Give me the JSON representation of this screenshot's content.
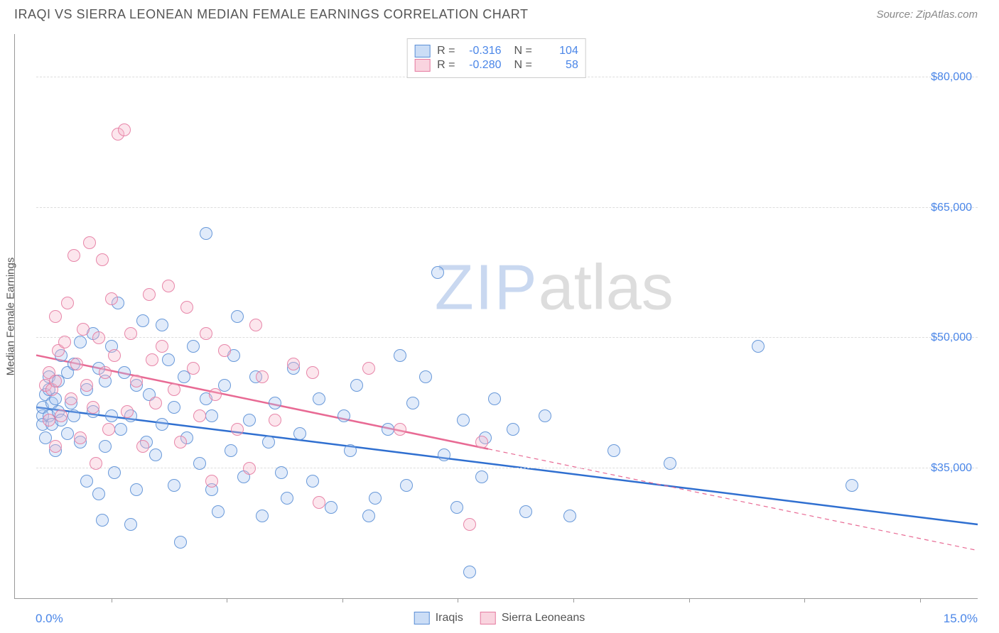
{
  "header": {
    "title": "IRAQI VS SIERRA LEONEAN MEDIAN FEMALE EARNINGS CORRELATION CHART",
    "source": "Source: ZipAtlas.com"
  },
  "watermark": {
    "part1": "ZIP",
    "part2": "atlas"
  },
  "chart": {
    "type": "scatter",
    "background_color": "#ffffff",
    "grid_color": "#dddddd",
    "axis_color": "#999999",
    "y_axis_label": "Median Female Earnings",
    "xlim": [
      0,
      15
    ],
    "ylim": [
      20000,
      85000
    ],
    "x_endpoints": [
      "0.0%",
      "15.0%"
    ],
    "y_ticks": [
      {
        "value": 35000,
        "label": "$35,000"
      },
      {
        "value": 50000,
        "label": "$50,000"
      },
      {
        "value": 65000,
        "label": "$65,000"
      },
      {
        "value": 80000,
        "label": "$80,000"
      }
    ],
    "x_tick_positions_pct": [
      10,
      22,
      34,
      46,
      58,
      70,
      82,
      94
    ],
    "marker_radius": 9,
    "marker_fill_opacity": 0.35,
    "marker_stroke_opacity": 0.9,
    "marker_stroke_width": 1,
    "series": [
      {
        "name": "Iraqis",
        "color_fill": "#a8c6f0",
        "color_stroke": "#5b8fd6",
        "R": "-0.316",
        "N": "104",
        "trend": {
          "y_at_xmin": 42000,
          "y_at_xmax": 28500,
          "color": "#2f6fd0",
          "width": 2.5
        },
        "points": [
          [
            0.1,
            41000
          ],
          [
            0.1,
            42000
          ],
          [
            0.1,
            40000
          ],
          [
            0.15,
            43500
          ],
          [
            0.15,
            38500
          ],
          [
            0.2,
            44000
          ],
          [
            0.2,
            41000
          ],
          [
            0.2,
            45500
          ],
          [
            0.25,
            42500
          ],
          [
            0.25,
            40000
          ],
          [
            0.3,
            43000
          ],
          [
            0.3,
            37000
          ],
          [
            0.35,
            45000
          ],
          [
            0.35,
            41500
          ],
          [
            0.4,
            48000
          ],
          [
            0.4,
            40500
          ],
          [
            0.5,
            46000
          ],
          [
            0.5,
            39000
          ],
          [
            0.55,
            42500
          ],
          [
            0.6,
            47000
          ],
          [
            0.6,
            41000
          ],
          [
            0.7,
            49500
          ],
          [
            0.7,
            38000
          ],
          [
            0.8,
            44000
          ],
          [
            0.8,
            33500
          ],
          [
            0.9,
            50500
          ],
          [
            0.9,
            41500
          ],
          [
            1.0,
            32000
          ],
          [
            1.0,
            46500
          ],
          [
            1.05,
            29000
          ],
          [
            1.1,
            45000
          ],
          [
            1.1,
            37500
          ],
          [
            1.2,
            49000
          ],
          [
            1.2,
            41000
          ],
          [
            1.25,
            34500
          ],
          [
            1.3,
            54000
          ],
          [
            1.35,
            39500
          ],
          [
            1.4,
            46000
          ],
          [
            1.5,
            41000
          ],
          [
            1.5,
            28500
          ],
          [
            1.6,
            32500
          ],
          [
            1.6,
            44500
          ],
          [
            1.7,
            52000
          ],
          [
            1.75,
            38000
          ],
          [
            1.8,
            43500
          ],
          [
            1.9,
            36500
          ],
          [
            2.0,
            51500
          ],
          [
            2.0,
            40000
          ],
          [
            2.1,
            47500
          ],
          [
            2.2,
            33000
          ],
          [
            2.2,
            42000
          ],
          [
            2.3,
            26500
          ],
          [
            2.35,
            45500
          ],
          [
            2.4,
            38500
          ],
          [
            2.5,
            49000
          ],
          [
            2.6,
            35500
          ],
          [
            2.7,
            62000
          ],
          [
            2.7,
            43000
          ],
          [
            2.8,
            32500
          ],
          [
            2.8,
            41000
          ],
          [
            2.9,
            30000
          ],
          [
            3.0,
            44500
          ],
          [
            3.1,
            37000
          ],
          [
            3.15,
            48000
          ],
          [
            3.2,
            52500
          ],
          [
            3.3,
            34000
          ],
          [
            3.4,
            40500
          ],
          [
            3.5,
            45500
          ],
          [
            3.6,
            29500
          ],
          [
            3.7,
            38000
          ],
          [
            3.8,
            42500
          ],
          [
            3.9,
            34500
          ],
          [
            4.0,
            31500
          ],
          [
            4.1,
            46500
          ],
          [
            4.2,
            39000
          ],
          [
            4.4,
            33500
          ],
          [
            4.5,
            43000
          ],
          [
            4.7,
            30500
          ],
          [
            4.9,
            41000
          ],
          [
            5.0,
            37000
          ],
          [
            5.1,
            44500
          ],
          [
            5.3,
            29500
          ],
          [
            5.4,
            31500
          ],
          [
            5.6,
            39500
          ],
          [
            5.8,
            48000
          ],
          [
            5.9,
            33000
          ],
          [
            6.0,
            42500
          ],
          [
            6.2,
            45500
          ],
          [
            6.4,
            57500
          ],
          [
            6.5,
            36500
          ],
          [
            6.7,
            30500
          ],
          [
            6.8,
            40500
          ],
          [
            6.9,
            23000
          ],
          [
            7.1,
            34000
          ],
          [
            7.15,
            38500
          ],
          [
            7.3,
            43000
          ],
          [
            7.6,
            39500
          ],
          [
            7.8,
            30000
          ],
          [
            8.1,
            41000
          ],
          [
            8.5,
            29500
          ],
          [
            9.2,
            37000
          ],
          [
            10.1,
            35500
          ],
          [
            11.5,
            49000
          ],
          [
            13.0,
            33000
          ]
        ]
      },
      {
        "name": "Sierra Leoneans",
        "color_fill": "#f5b8ca",
        "color_stroke": "#e57ba1",
        "R": "-0.280",
        "N": "58",
        "trend": {
          "y_at_xmin": 48000,
          "y_at_xmax": 25500,
          "solid_until_x": 7.2,
          "color": "#e86a94",
          "width": 2.5
        },
        "points": [
          [
            0.15,
            44500
          ],
          [
            0.2,
            46000
          ],
          [
            0.2,
            40500
          ],
          [
            0.25,
            44000
          ],
          [
            0.3,
            52500
          ],
          [
            0.3,
            37500
          ],
          [
            0.3,
            45000
          ],
          [
            0.35,
            48500
          ],
          [
            0.4,
            41000
          ],
          [
            0.45,
            49500
          ],
          [
            0.5,
            54000
          ],
          [
            0.55,
            43000
          ],
          [
            0.6,
            59500
          ],
          [
            0.65,
            47000
          ],
          [
            0.7,
            38500
          ],
          [
            0.75,
            51000
          ],
          [
            0.8,
            44500
          ],
          [
            0.85,
            61000
          ],
          [
            0.9,
            42000
          ],
          [
            0.95,
            35500
          ],
          [
            1.0,
            50000
          ],
          [
            1.05,
            59000
          ],
          [
            1.1,
            46000
          ],
          [
            1.15,
            39500
          ],
          [
            1.2,
            54500
          ],
          [
            1.25,
            48000
          ],
          [
            1.3,
            73500
          ],
          [
            1.4,
            74000
          ],
          [
            1.45,
            41500
          ],
          [
            1.5,
            50500
          ],
          [
            1.6,
            45000
          ],
          [
            1.7,
            37500
          ],
          [
            1.8,
            55000
          ],
          [
            1.85,
            47500
          ],
          [
            1.9,
            42500
          ],
          [
            2.0,
            49000
          ],
          [
            2.1,
            56000
          ],
          [
            2.2,
            44000
          ],
          [
            2.3,
            38000
          ],
          [
            2.4,
            53500
          ],
          [
            2.5,
            46500
          ],
          [
            2.6,
            41000
          ],
          [
            2.7,
            50500
          ],
          [
            2.8,
            33500
          ],
          [
            2.85,
            43500
          ],
          [
            3.0,
            48500
          ],
          [
            3.2,
            39500
          ],
          [
            3.4,
            35000
          ],
          [
            3.5,
            51500
          ],
          [
            3.6,
            45500
          ],
          [
            3.8,
            40500
          ],
          [
            4.1,
            47000
          ],
          [
            4.4,
            46000
          ],
          [
            4.5,
            31000
          ],
          [
            5.3,
            46500
          ],
          [
            5.8,
            39500
          ],
          [
            6.9,
            28500
          ],
          [
            7.1,
            38000
          ]
        ]
      }
    ]
  },
  "legend_bottom": [
    {
      "label": "Iraqis",
      "fill": "#a8c6f0",
      "stroke": "#5b8fd6"
    },
    {
      "label": "Sierra Leoneans",
      "fill": "#f5b8ca",
      "stroke": "#e57ba1"
    }
  ]
}
